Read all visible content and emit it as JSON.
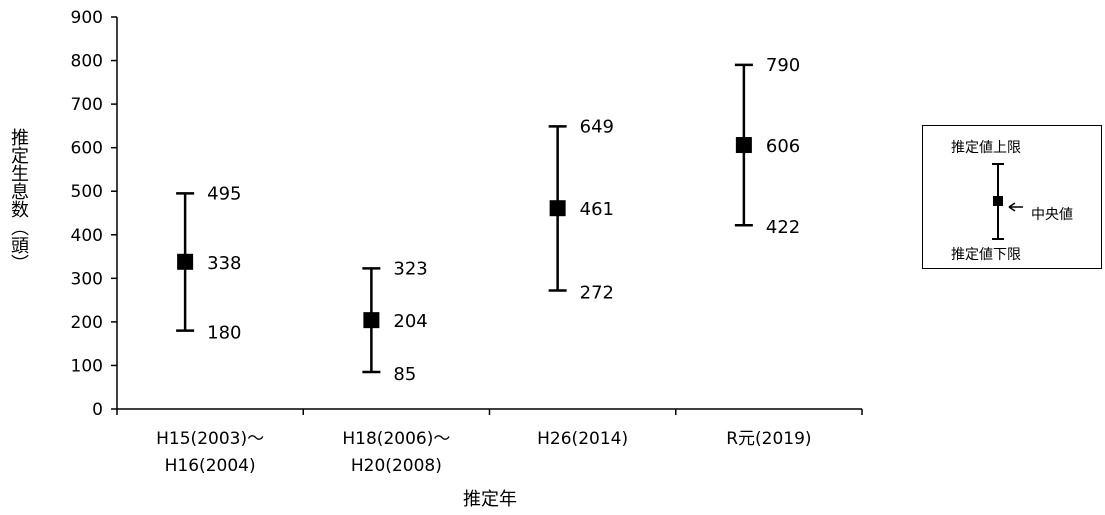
{
  "chart_data": {
    "type": "scatter",
    "title": "",
    "xlabel": "推定年",
    "ylabel": "推定生息数（頭）",
    "ylim": [
      0,
      900
    ],
    "yticks": [
      0,
      100,
      200,
      300,
      400,
      500,
      600,
      700,
      800,
      900
    ],
    "grid": false,
    "categories": [
      [
        "H15(2003)～",
        "H16(2004)"
      ],
      [
        "H18(2006)～",
        "H20(2008)"
      ],
      [
        "H26(2014)"
      ],
      [
        "R元(2019)"
      ]
    ],
    "series": [
      {
        "median": [
          338,
          204,
          461,
          606
        ],
        "upper": [
          495,
          323,
          649,
          790
        ],
        "lower": [
          180,
          85,
          272,
          422
        ]
      }
    ],
    "legend": {
      "placement": "right",
      "upper_label": "推定値上限",
      "median_label": "中央値",
      "lower_label": "推定値下限"
    }
  }
}
